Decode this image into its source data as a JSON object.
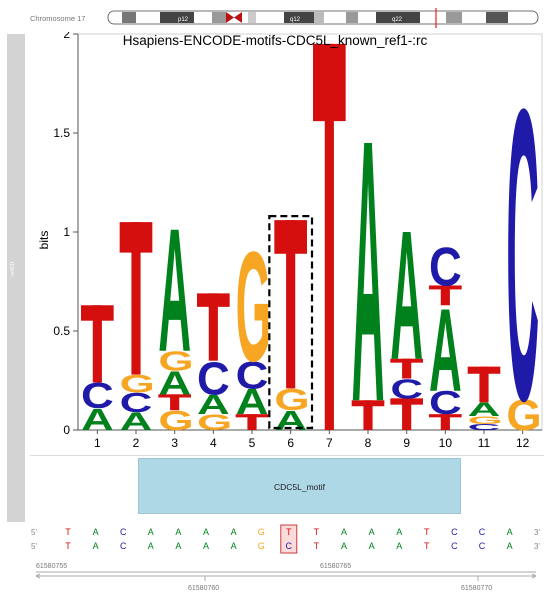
{
  "chromosome": {
    "label": "Chromosome 17",
    "bands": [
      "p12",
      "q12",
      "q22"
    ],
    "marker_color": "#e0241b"
  },
  "side_track_label": "rs4811",
  "logo": {
    "title": "Hsapiens-ENCODE-motifs-CDC5L_known_ref1-:rc",
    "ylabel": "bits",
    "ylim": [
      0,
      2
    ],
    "yticks": [
      "0",
      "0.5",
      "1",
      "1.5",
      "2"
    ],
    "xticks": [
      "1",
      "2",
      "3",
      "4",
      "5",
      "6",
      "7",
      "8",
      "9",
      "10",
      "11",
      "12"
    ],
    "highlight_position": 6,
    "colors": {
      "A": "#00811b",
      "C": "#1f1aa8",
      "G": "#f6a623",
      "T": "#d50e0e"
    }
  },
  "chart_data": {
    "type": "bar",
    "title": "Hsapiens-ENCODE-motifs-CDC5L_known_ref1-:rc",
    "xlabel": "",
    "ylabel": "bits",
    "ylim": [
      0,
      2
    ],
    "categories": [
      "1",
      "2",
      "3",
      "4",
      "5",
      "6",
      "7",
      "8",
      "9",
      "10",
      "11",
      "12"
    ],
    "stacks": [
      [
        [
          "A",
          0.11
        ],
        [
          "C",
          0.13
        ],
        [
          "T",
          0.39
        ]
      ],
      [
        [
          "A",
          0.09
        ],
        [
          "C",
          0.1
        ],
        [
          "G",
          0.09
        ],
        [
          "T",
          0.77
        ]
      ],
      [
        [
          "G",
          0.1
        ],
        [
          "T",
          0.08
        ],
        [
          "A",
          0.12
        ],
        [
          "G",
          0.1
        ],
        [
          "A",
          0.64
        ]
      ],
      [
        [
          "G",
          0.08
        ],
        [
          "A",
          0.1
        ],
        [
          "C",
          0.17
        ],
        [
          "T",
          0.34
        ]
      ],
      [
        [
          "T",
          0.08
        ],
        [
          "A",
          0.13
        ],
        [
          "C",
          0.14
        ],
        [
          "G",
          0.57
        ]
      ],
      [
        [
          "A",
          0.1
        ],
        [
          "G",
          0.11
        ],
        [
          "T",
          0.85
        ]
      ],
      [
        [
          "T",
          1.95
        ]
      ],
      [
        [
          "T",
          0.15
        ],
        [
          "A",
          1.36
        ]
      ],
      [
        [
          "T",
          0.16
        ],
        [
          "C",
          0.1
        ],
        [
          "T",
          0.1
        ],
        [
          "A",
          0.67
        ]
      ],
      [
        [
          "T",
          0.08
        ],
        [
          "C",
          0.12
        ],
        [
          "A",
          0.43
        ],
        [
          "T",
          0.1
        ],
        [
          "C",
          0.2
        ]
      ],
      [
        [
          "C",
          0.03
        ],
        [
          "G",
          0.04
        ],
        [
          "A",
          0.07
        ],
        [
          "T",
          0.18
        ]
      ],
      [
        [
          "G",
          0.16
        ],
        [
          "C",
          1.51
        ]
      ]
    ]
  },
  "track": {
    "motif_label": "CDC5L_motif"
  },
  "sequence": {
    "strand_label": "5'",
    "end_label": "3'",
    "ref": [
      "T",
      "A",
      "C",
      "A",
      "A",
      "A",
      "A",
      "G",
      "T",
      "T",
      "A",
      "A",
      "A",
      "T",
      "C",
      "C",
      "A"
    ],
    "alt": [
      "T",
      "A",
      "C",
      "A",
      "A",
      "A",
      "A",
      "G",
      "C",
      "T",
      "A",
      "A",
      "A",
      "T",
      "C",
      "C",
      "A"
    ],
    "highlight_index": 8,
    "coords_top": [
      "61580755",
      "61580765"
    ],
    "coords_bottom": [
      "61580760",
      "61580770"
    ]
  }
}
